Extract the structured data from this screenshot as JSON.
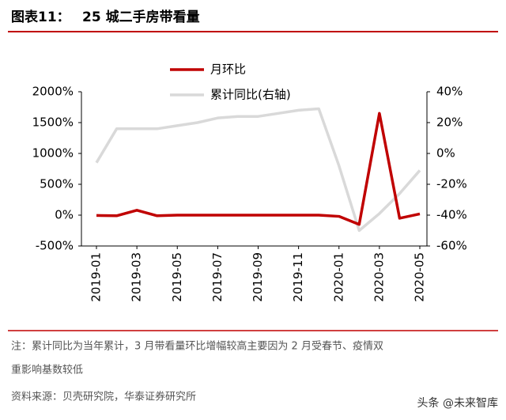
{
  "chart_data": {
    "type": "line",
    "figure_label": "图表11：",
    "title": "25 城二手房带看量",
    "categories": [
      "2019-01",
      null,
      "2019-03",
      null,
      "2019-05",
      null,
      "2019-07",
      null,
      "2019-09",
      null,
      "2019-11",
      null,
      "2020-01",
      null,
      "2020-03",
      null,
      "2020-05"
    ],
    "series": [
      {
        "name": "月环比",
        "color": "#c00000",
        "values": [
          -5,
          -10,
          80,
          -10,
          0,
          0,
          0,
          0,
          0,
          0,
          0,
          0,
          -20,
          -150,
          1650,
          -50,
          20
        ]
      },
      {
        "name": "累计同比(右轴)",
        "color": "#d9d9d9",
        "axis": "y2",
        "values": [
          -6,
          16,
          16,
          16,
          18,
          20,
          23,
          24,
          24,
          26,
          28,
          29,
          -8,
          -50,
          -39,
          -26,
          -11
        ]
      }
    ],
    "ylim": [
      -500,
      2000
    ],
    "yticks": [
      {
        "value": -500,
        "label": "-500%"
      },
      {
        "value": 0,
        "label": "0%"
      },
      {
        "value": 500,
        "label": "500%"
      },
      {
        "value": 1000,
        "label": "1000%"
      },
      {
        "value": 1500,
        "label": "1500%"
      },
      {
        "value": 2000,
        "label": "2000%"
      }
    ],
    "y2lim": [
      -60,
      40
    ],
    "y2ticks": [
      {
        "value": -60,
        "label": "-60%"
      },
      {
        "value": -40,
        "label": "-40%"
      },
      {
        "value": -20,
        "label": "-20%"
      },
      {
        "value": 0,
        "label": "0%"
      },
      {
        "value": 20,
        "label": "20%"
      },
      {
        "value": 40,
        "label": "40%"
      }
    ],
    "notes": [
      "注：累计同比为当年累计，3 月带看量环比增幅较高主要因为 2 月受春节、疫情双重影响基数较低"
    ],
    "note_lines": [
      "注：累计同比为当年累计，3 月带看量环比增幅较高主要因为 2 月受春节、疫情双",
      "重影响基数较低"
    ],
    "source": "资料来源：贝壳研究院，华泰证券研究所",
    "watermark": "头条 @未来智库"
  }
}
